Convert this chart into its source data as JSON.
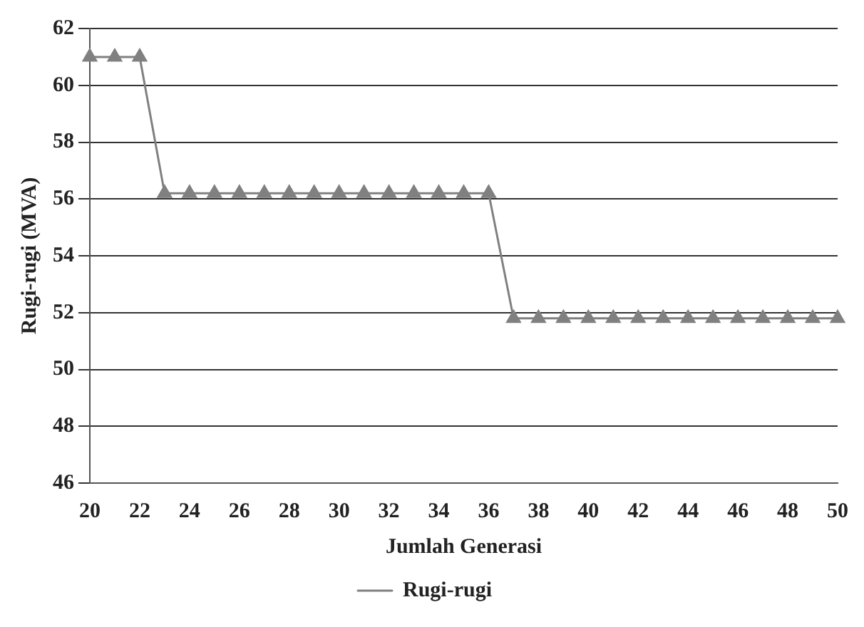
{
  "chart_data": {
    "type": "line",
    "xlabel": "Jumlah Generasi",
    "ylabel": "Rugi-rugi (MVA)",
    "categories": [
      "20",
      null,
      "22",
      null,
      "24",
      null,
      "26",
      null,
      "28",
      null,
      "30",
      null,
      "32",
      null,
      "34",
      null,
      "36",
      null,
      "38",
      null,
      "40",
      null,
      "42",
      null,
      "44",
      null,
      "46",
      null,
      "48",
      null,
      "50"
    ],
    "series": [
      {
        "name": "Rugi-rugi",
        "color": "#808080",
        "values": [
          61.0,
          61.0,
          61.0,
          56.2,
          56.2,
          56.2,
          56.2,
          56.2,
          56.2,
          56.2,
          56.2,
          56.2,
          56.2,
          56.2,
          56.2,
          56.2,
          56.2,
          51.8,
          51.8,
          51.8,
          51.8,
          51.8,
          51.8,
          51.8,
          51.8,
          51.8,
          51.8,
          51.8,
          51.8,
          51.8,
          51.8
        ]
      }
    ],
    "ylim": [
      46,
      62
    ],
    "yticks": [
      46,
      48,
      50,
      52,
      54,
      56,
      58,
      60,
      62
    ],
    "grid": "y",
    "legend": "bottom",
    "marker": "triangle",
    "line_style": "solid"
  }
}
